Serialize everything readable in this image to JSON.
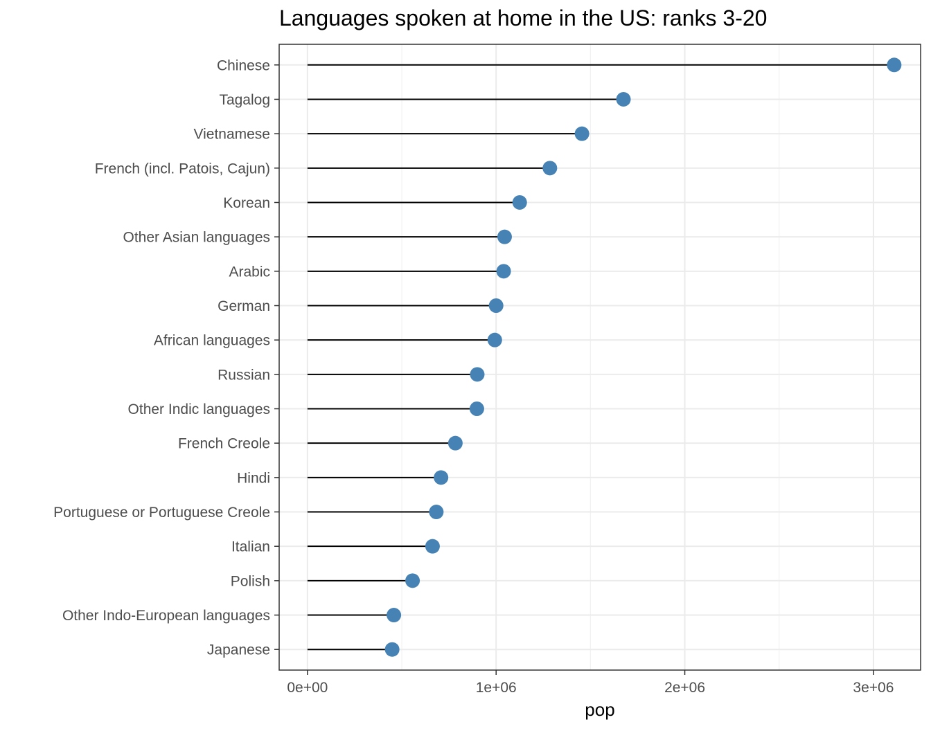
{
  "chart_data": {
    "type": "lollipop",
    "title": "Languages spoken at home in the US: ranks 3-20",
    "xlabel": "pop",
    "ylabel": "",
    "xlim": [
      -150000,
      3250000
    ],
    "x_ticks": [
      0,
      1000000,
      2000000,
      3000000
    ],
    "x_tick_labels": [
      "0e+00",
      "1e+06",
      "2e+06",
      "3e+06"
    ],
    "grid": true,
    "point_color": "#4682B4",
    "stem_color": "#000000",
    "categories": [
      "Chinese",
      "Tagalog",
      "Vietnamese",
      "French (incl. Patois, Cajun)",
      "Korean",
      "Other Asian languages",
      "Arabic",
      "German",
      "African languages",
      "Russian",
      "Other Indic languages",
      "French Creole",
      "Hindi",
      "Portuguese or Portuguese Creole",
      "Italian",
      "Polish",
      "Other Indo-European languages",
      "Japanese"
    ],
    "values": [
      3110000,
      1675000,
      1455000,
      1285000,
      1125000,
      1045000,
      1040000,
      1000000,
      993000,
      900000,
      898000,
      784000,
      708000,
      683000,
      663000,
      557000,
      458000,
      449000
    ]
  }
}
